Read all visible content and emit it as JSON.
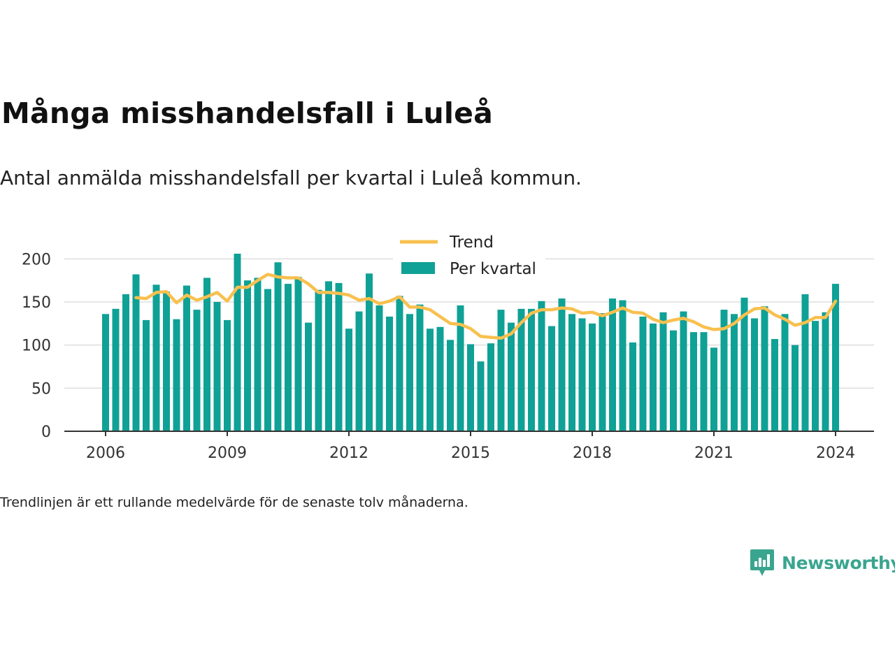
{
  "title": "Många misshandelsfall i Luleå",
  "subtitle": "Antal anmälda misshandelsfall per kvartal i Luleå kommun.",
  "footnote": "Trendlinjen är ett rullande medelvärde för de senaste tolv månaderna.",
  "brand": {
    "name": "Newsworthy",
    "icon": "newsworthy-logo-icon"
  },
  "colors": {
    "bar": "#0fa196",
    "trend": "#f8c04f",
    "grid": "#dddddd",
    "axis": "#333333"
  },
  "chart_data": {
    "type": "bar",
    "x_unit": "quarter",
    "start": {
      "year": 2006,
      "quarter": 1
    },
    "ylim": [
      0,
      210
    ],
    "yticks": [
      0,
      50,
      100,
      150,
      200
    ],
    "xticks": [
      2006,
      2009,
      2012,
      2015,
      2018,
      2021,
      2024
    ],
    "grid": true,
    "legend_position": "top",
    "series": [
      {
        "name": "Per kvartal",
        "type": "bar",
        "values": [
          136,
          142,
          159,
          182,
          129,
          170,
          162,
          130,
          169,
          141,
          178,
          150,
          129,
          206,
          175,
          178,
          165,
          196,
          171,
          179,
          126,
          164,
          174,
          172,
          119,
          139,
          183,
          146,
          133,
          157,
          136,
          147,
          119,
          121,
          106,
          146,
          101,
          81,
          102,
          141,
          126,
          142,
          142,
          151,
          122,
          154,
          136,
          131,
          125,
          137,
          154,
          152,
          103,
          133,
          125,
          138,
          117,
          139,
          115,
          115,
          97,
          141,
          136,
          155,
          131,
          145,
          107,
          136,
          100,
          159,
          128,
          138,
          171
        ]
      },
      {
        "name": "Trend",
        "type": "line",
        "start_index": 3,
        "values": [
          155,
          154,
          161,
          162,
          149,
          158,
          152,
          156,
          161,
          151,
          167,
          167,
          175,
          182,
          179,
          178,
          178,
          171,
          161,
          161,
          160,
          158,
          152,
          154,
          148,
          151,
          156,
          144,
          144,
          141,
          133,
          125,
          124,
          119,
          110,
          109,
          108,
          113,
          126,
          137,
          141,
          141,
          143,
          142,
          137,
          138,
          134,
          138,
          143,
          138,
          137,
          130,
          126,
          129,
          131,
          127,
          121,
          118,
          119,
          125,
          135,
          142,
          143,
          135,
          130,
          123,
          126,
          132,
          132,
          151
        ]
      }
    ]
  }
}
